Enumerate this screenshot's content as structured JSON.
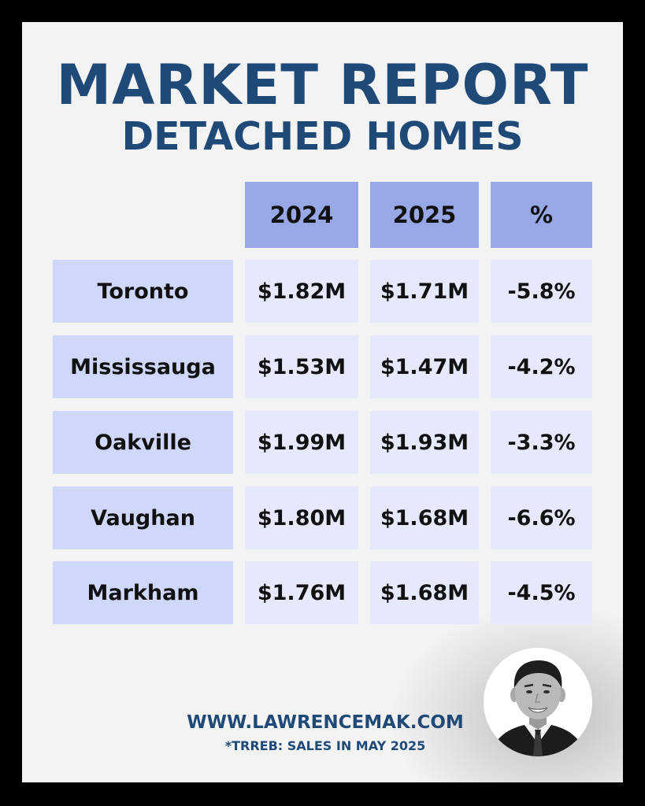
{
  "title": "MARKET REPORT",
  "subtitle": "DETACHED HOMES",
  "table": {
    "headers": [
      "2024",
      "2025",
      "%"
    ],
    "rows": [
      {
        "city": "Toronto",
        "y2024": "$1.82M",
        "y2025": "$1.71M",
        "pct": "-5.8%"
      },
      {
        "city": "Mississauga",
        "y2024": "$1.53M",
        "y2025": "$1.47M",
        "pct": "-4.2%"
      },
      {
        "city": "Oakville",
        "y2024": "$1.99M",
        "y2025": "$1.93M",
        "pct": "-3.3%"
      },
      {
        "city": "Vaughan",
        "y2024": "$1.80M",
        "y2025": "$1.68M",
        "pct": "-6.6%"
      },
      {
        "city": "Markham",
        "y2024": "$1.76M",
        "y2025": "$1.68M",
        "pct": "-4.5%"
      }
    ]
  },
  "footer": {
    "website": "WWW.LAWRENCEMAK.COM",
    "source": "*TRREB: SALES IN MAY 2025"
  },
  "colors": {
    "title": "#1f4a78",
    "header_cell": "#98a8e6",
    "city_cell": "#cfd8fb",
    "value_cell": "#e6e9fc",
    "frame": "#000000",
    "card": "#f3f3f3"
  },
  "icons": {
    "avatar": "agent-portrait"
  }
}
